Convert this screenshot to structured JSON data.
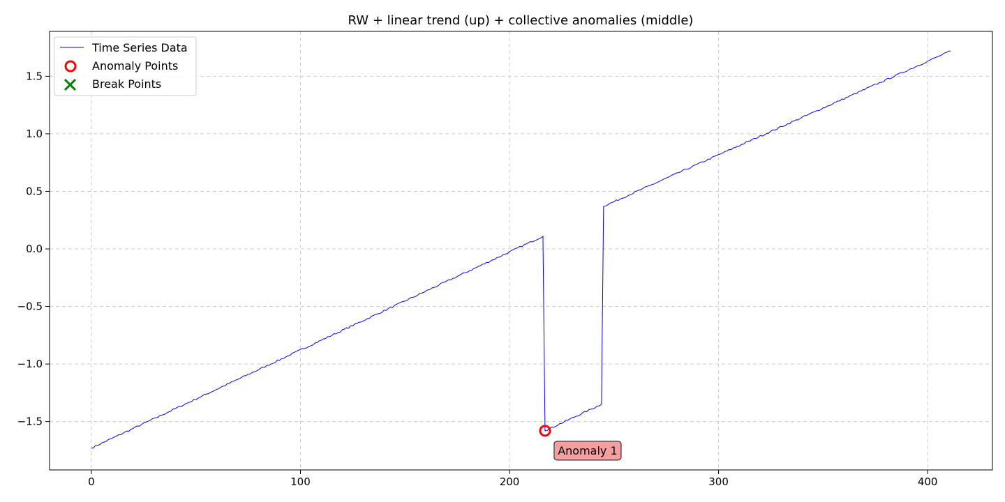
{
  "chart_data": {
    "type": "line",
    "title": "RW + linear trend (up) + collective anomalies (middle)",
    "xlabel": "",
    "ylabel": "",
    "xlim": [
      -20,
      431
    ],
    "ylim": [
      -1.92,
      1.89
    ],
    "xticks": [
      0,
      100,
      200,
      300,
      400
    ],
    "yticks": [
      -1.5,
      -1.0,
      -0.5,
      0.0,
      0.5,
      1.0,
      1.5
    ],
    "ytick_labels": [
      "−1.5",
      "−1.0",
      "−0.5",
      "0.0",
      "0.5",
      "1.0",
      "1.5"
    ],
    "grid": true,
    "legend_position": "top-left",
    "colors": {
      "series": "#0000ff",
      "anomaly": "#ff0000",
      "break": "#008000",
      "annotation_fill": "#f4a0a0",
      "grid": "#cccccc"
    },
    "series": [
      {
        "name": "Time Series Data",
        "segments": [
          {
            "x_start": 0,
            "x_end": 216,
            "y_start": -1.73,
            "y_end": 0.11
          },
          {
            "x_start": 217,
            "x_end": 244,
            "y_start": -1.58,
            "y_end": -1.35
          },
          {
            "x_start": 245,
            "x_end": 411,
            "y_start": 0.37,
            "y_end": 1.72
          }
        ]
      }
    ],
    "anomaly_points": {
      "name": "Anomaly Points",
      "points": [
        {
          "x": 217,
          "y": -1.58
        }
      ]
    },
    "break_points": {
      "name": "Break Points",
      "points": []
    },
    "annotations": [
      {
        "text": "Anomaly 1",
        "x": 217,
        "y": -1.58
      }
    ]
  }
}
